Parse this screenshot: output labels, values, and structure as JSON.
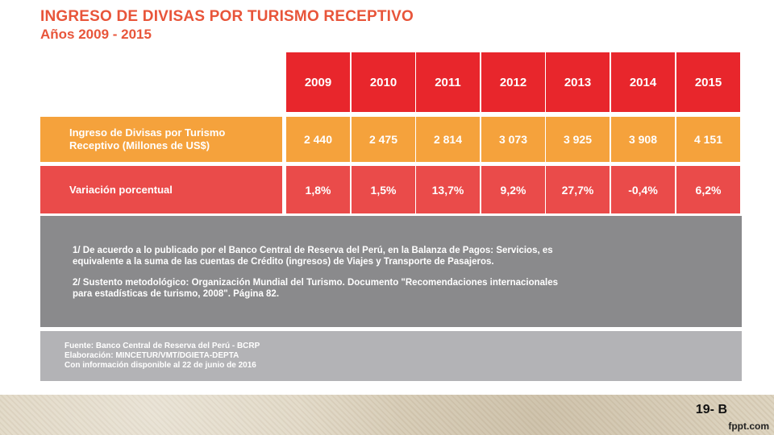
{
  "title": "INGRESO DE DIVISAS POR TURISMO RECEPTIVO",
  "subtitle": "Años 2009 - 2015",
  "table": {
    "years": [
      "2009",
      "2010",
      "2011",
      "2012",
      "2013",
      "2014",
      "2015"
    ],
    "rows": [
      {
        "label_line1": "Ingreso de Divisas por Turismo",
        "label_line2": "Receptivo (Millones de US$)",
        "values": [
          "2 440",
          "2 475",
          "2 814",
          "3 073",
          "3 925",
          "3 908",
          "4 151"
        ]
      },
      {
        "label_line1": "Variación porcentual",
        "label_line2": "",
        "values": [
          "1,8%",
          "1,5%",
          "13,7%",
          "9,2%",
          "27,7%",
          "-0,4%",
          "6,2%"
        ]
      }
    ]
  },
  "notes": {
    "note1_line1": "1/ De acuerdo a lo publicado por el Banco Central de Reserva del Perú, en la Balanza de Pagos: Servicios, es",
    "note1_line2": "equivalente a la suma de las cuentas de Crédito (ingresos) de Viajes y Transporte de Pasajeros.",
    "note2_line1": "2/ Sustento metodológico: Organización Mundial del Turismo. Documento \"Recomendaciones internacionales",
    "note2_line2": "para estadísticas de turismo, 2008\". Página 82."
  },
  "source": {
    "line1": "Fuente: Banco Central de Reserva del Perú - BCRP",
    "line2": "Elaboración: MINCETUR/VMT/DGIETA-DEPTA",
    "line3": "Con información disponible al 22 de junio de 2016"
  },
  "footer": {
    "slide_number": "19- B",
    "brand": "fppt.com"
  }
}
